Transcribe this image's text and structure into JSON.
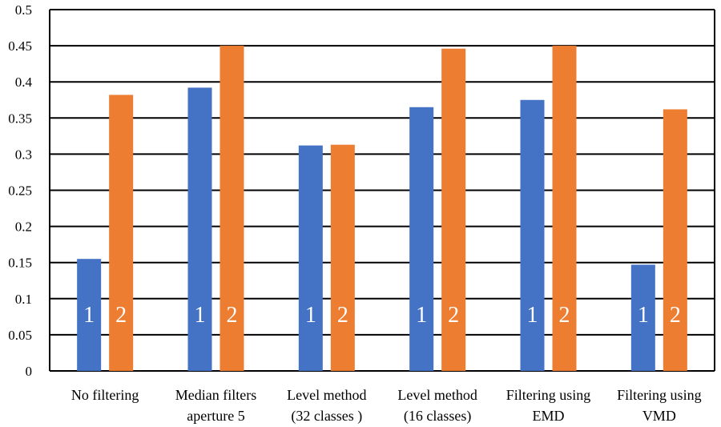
{
  "chart_data": {
    "type": "bar",
    "categories": [
      [
        "No filtering"
      ],
      [
        "Median filters",
        "aperture 5"
      ],
      [
        "Level method",
        "(32 classes )"
      ],
      [
        "Level method",
        "(16 classes)"
      ],
      [
        "Filtering using",
        "EMD"
      ],
      [
        "Filtering using",
        "VMD"
      ]
    ],
    "series": [
      {
        "values": [
          0.155,
          0.392,
          0.312,
          0.365,
          0.375,
          0.147
        ],
        "bar_label": "1",
        "color": "#4472C4"
      },
      {
        "values": [
          0.382,
          0.45,
          0.313,
          0.446,
          0.45,
          0.362
        ],
        "bar_label": "2",
        "color": "#ED7D31"
      }
    ],
    "ylim": [
      0,
      0.5
    ],
    "yticks": [
      "0",
      "0.05",
      "0.1",
      "0.15",
      "0.2",
      "0.25",
      "0.3",
      "0.35",
      "0.4",
      "0.45",
      "0.5"
    ],
    "grid": true,
    "legend": "none"
  }
}
